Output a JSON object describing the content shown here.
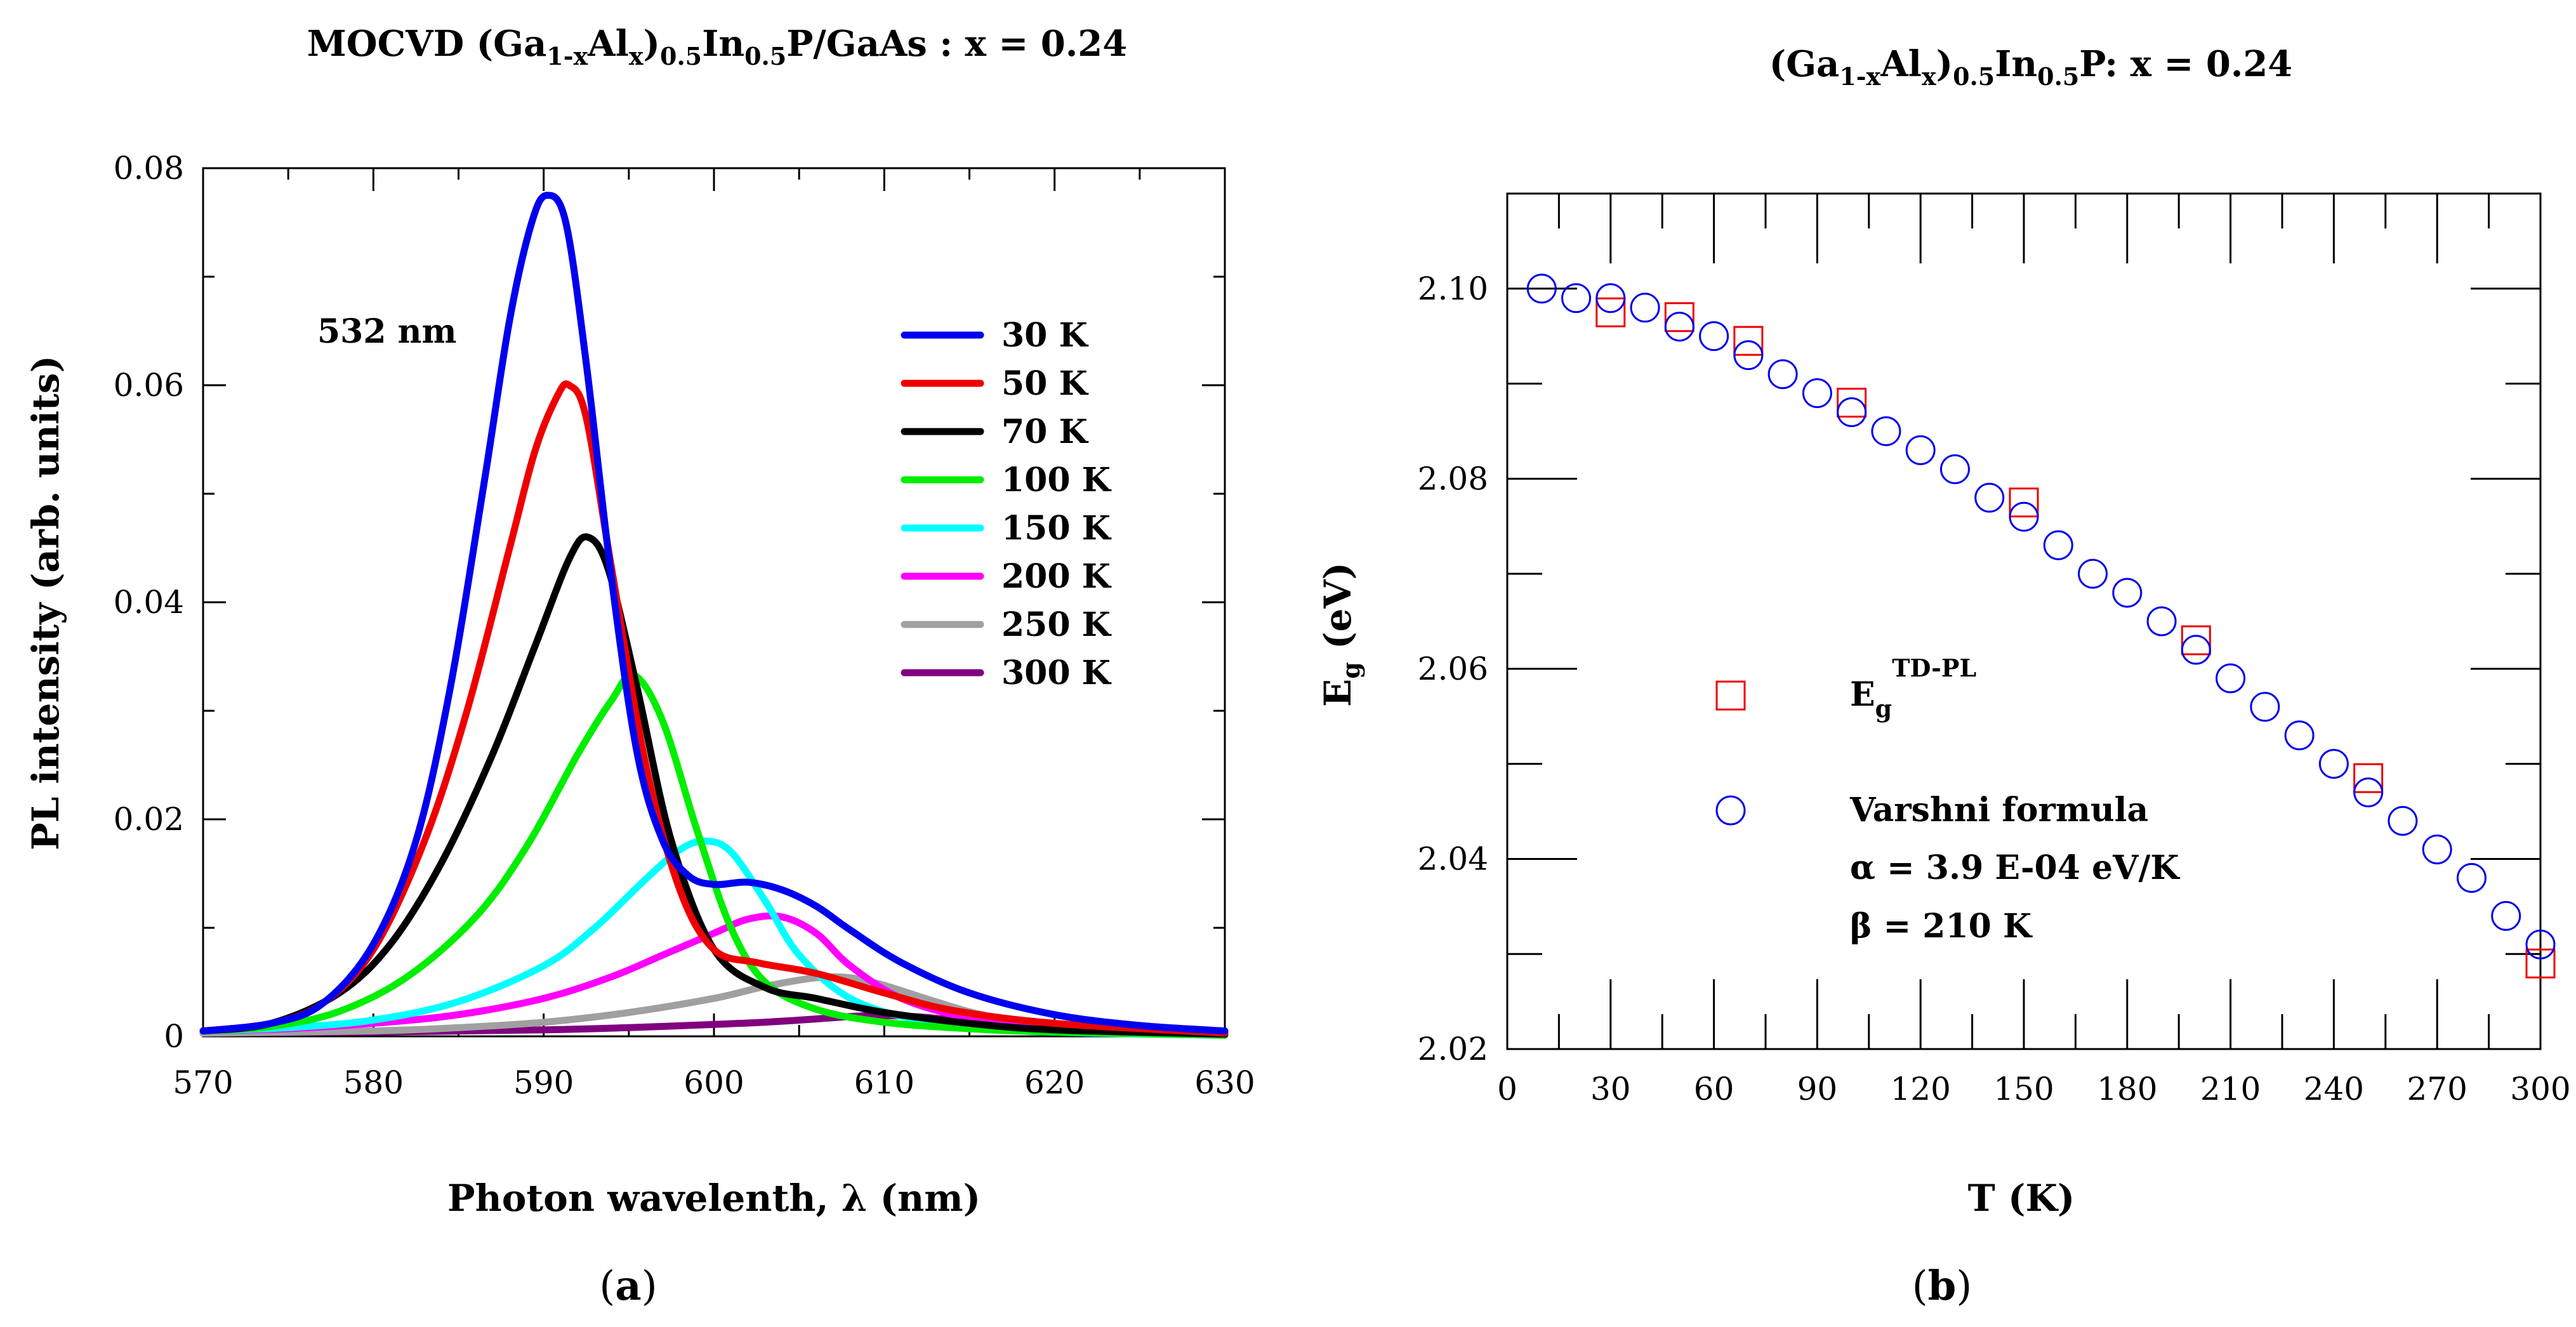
{
  "chart_data": [
    {
      "type": "line",
      "panel_label": "a",
      "title": {
        "pre": "MOCVD (Ga",
        "s1": "1-x",
        "mid1": "Al",
        "s2": "x",
        "mid2": ")",
        "s3": "0.5",
        "mid3": "In",
        "s4": "0.5",
        "post": "P/GaAs : x = 0.24"
      },
      "xlabel": "Photon wavelenth, λ (nm)",
      "ylabel": "PL intensity (arb. units)",
      "xlim": [
        570,
        630
      ],
      "ylim": [
        0,
        0.08
      ],
      "xticks": [
        570,
        580,
        590,
        600,
        610,
        620,
        630
      ],
      "yticks": [
        0,
        0.02,
        0.04,
        0.06,
        0.08
      ],
      "ytick_labels": [
        "0",
        "0.02",
        "0.04",
        "0.06",
        "0.08"
      ],
      "annotation": "532 nm",
      "series": [
        {
          "name": "300 K",
          "color": "#800080",
          "x": [
            570,
            580,
            590,
            595,
            600,
            603,
            606,
            609,
            612,
            616,
            620,
            626,
            630
          ],
          "y": [
            0.0003,
            0.0004,
            0.0006,
            0.0008,
            0.0011,
            0.0013,
            0.0016,
            0.0019,
            0.0018,
            0.0012,
            0.0007,
            0.0004,
            0.0002
          ]
        },
        {
          "name": "250 K",
          "color": "#a0a0a0",
          "x": [
            570,
            580,
            585,
            590,
            595,
            600,
            603,
            606,
            608,
            610,
            613,
            616,
            620,
            625,
            630
          ],
          "y": [
            0.0003,
            0.0005,
            0.0008,
            0.0013,
            0.0022,
            0.0035,
            0.0046,
            0.0054,
            0.0054,
            0.0047,
            0.0032,
            0.0019,
            0.001,
            0.0005,
            0.0003
          ]
        },
        {
          "name": "200 K",
          "color": "#ff00ff",
          "x": [
            570,
            575,
            580,
            585,
            590,
            594,
            597,
            600,
            602,
            604,
            606,
            608,
            611,
            615,
            620,
            625,
            630
          ],
          "y": [
            0.0005,
            0.0007,
            0.0012,
            0.002,
            0.0035,
            0.0055,
            0.0075,
            0.0095,
            0.0108,
            0.011,
            0.0095,
            0.0065,
            0.0035,
            0.0017,
            0.0008,
            0.0004,
            0.0002
          ]
        },
        {
          "name": "150 K",
          "color": "#00ffff",
          "x": [
            570,
            575,
            580,
            585,
            590,
            593,
            596,
            598,
            599.5,
            601,
            603,
            605,
            608,
            612,
            617,
            622,
            630
          ],
          "y": [
            0.0005,
            0.0008,
            0.0015,
            0.0032,
            0.0065,
            0.01,
            0.0145,
            0.0172,
            0.018,
            0.017,
            0.0125,
            0.0075,
            0.0035,
            0.0015,
            0.0006,
            0.0003,
            0.0001
          ]
        },
        {
          "name": "100 K",
          "color": "#00ee00",
          "x": [
            570,
            574,
            578,
            582,
            586,
            589,
            592,
            594,
            595.3,
            597,
            599,
            601,
            603,
            606,
            610,
            615,
            620,
            630
          ],
          "y": [
            0.0005,
            0.0009,
            0.0023,
            0.0055,
            0.011,
            0.0175,
            0.026,
            0.031,
            0.0333,
            0.029,
            0.019,
            0.01,
            0.005,
            0.0025,
            0.0013,
            0.0007,
            0.0004,
            0.0001
          ]
        },
        {
          "name": "70 K",
          "color": "#000000",
          "x": [
            570,
            574,
            578,
            581,
            584,
            587,
            589.5,
            591.5,
            592.6,
            593.8,
            595.5,
            597.5,
            600,
            603,
            606,
            610,
            615,
            620,
            630
          ],
          "y": [
            0.0005,
            0.0012,
            0.004,
            0.0085,
            0.016,
            0.026,
            0.036,
            0.044,
            0.046,
            0.043,
            0.032,
            0.018,
            0.008,
            0.0045,
            0.0035,
            0.0022,
            0.0012,
            0.0006,
            0.0002
          ]
        },
        {
          "name": "50 K",
          "color": "#ee0000",
          "x": [
            570,
            574,
            577,
            580,
            583,
            585.5,
            588,
            589.5,
            590.8,
            591.5,
            592.5,
            594,
            596,
            598,
            600,
            602.5,
            606,
            610,
            614,
            620,
            630
          ],
          "y": [
            0.0005,
            0.0012,
            0.003,
            0.008,
            0.018,
            0.03,
            0.045,
            0.054,
            0.059,
            0.06,
            0.057,
            0.043,
            0.025,
            0.0135,
            0.008,
            0.0068,
            0.0058,
            0.004,
            0.0024,
            0.0012,
            0.0003
          ]
        },
        {
          "name": "30 K",
          "color": "#0000ee",
          "x": [
            570,
            574,
            577,
            580,
            582.5,
            584.5,
            586.5,
            588,
            589.3,
            590.2,
            591.3,
            592.5,
            594,
            595.5,
            597,
            598.5,
            600,
            602,
            604,
            606,
            608,
            611,
            615,
            620,
            625,
            630
          ],
          "y": [
            0.0005,
            0.0012,
            0.003,
            0.0085,
            0.018,
            0.032,
            0.051,
            0.066,
            0.075,
            0.0775,
            0.075,
            0.062,
            0.042,
            0.026,
            0.018,
            0.0148,
            0.014,
            0.0142,
            0.0135,
            0.012,
            0.0098,
            0.0068,
            0.004,
            0.002,
            0.001,
            0.0005
          ]
        }
      ]
    },
    {
      "type": "scatter",
      "panel_label": "b",
      "title": {
        "pre": "(Ga",
        "s1": "1-x",
        "mid1": "Al",
        "s2": "x",
        "mid2": ")",
        "s3": "0.5",
        "mid3": "In",
        "s4": "0.5",
        "post": "P: x = 0.24"
      },
      "xlabel": "T (K)",
      "ylabel": {
        "main": "E",
        "sub": "g",
        "unit": " (eV)"
      },
      "xlim": [
        0,
        300
      ],
      "ylim": [
        2.02,
        2.11
      ],
      "xticks": [
        0,
        30,
        60,
        90,
        120,
        150,
        180,
        210,
        240,
        270,
        300
      ],
      "yticks": [
        2.02,
        2.04,
        2.06,
        2.08,
        2.1
      ],
      "ytick_labels": [
        "2.02",
        "2.04",
        "2.06",
        "2.08",
        "2.10"
      ],
      "legend_items": [
        {
          "main": "E",
          "sub": "g",
          "sup": "TD-PL",
          "marker": "square",
          "color": "#ee0000"
        },
        {
          "main": "Varshni formula",
          "marker": "circle",
          "color": "#0000ee"
        }
      ],
      "notes": [
        "α = 3.9 E-04 eV/K",
        "β = 210 K"
      ],
      "series": [
        {
          "name": "TD-PL",
          "marker": "square",
          "color": "#ee0000",
          "x": [
            30,
            50,
            70,
            100,
            150,
            200,
            250,
            300
          ],
          "y": [
            2.0975,
            2.097,
            2.0945,
            2.088,
            2.0775,
            2.063,
            2.0485,
            2.029
          ]
        },
        {
          "name": "Varshni formula",
          "marker": "circle",
          "color": "#0000ee",
          "x": [
            10,
            20,
            30,
            40,
            50,
            60,
            70,
            80,
            90,
            100,
            110,
            120,
            130,
            140,
            150,
            160,
            170,
            180,
            190,
            200,
            210,
            220,
            230,
            240,
            250,
            260,
            270,
            280,
            290,
            300
          ],
          "y": [
            2.1,
            2.099,
            2.099,
            2.098,
            2.096,
            2.095,
            2.093,
            2.091,
            2.089,
            2.087,
            2.085,
            2.083,
            2.081,
            2.078,
            2.076,
            2.073,
            2.07,
            2.068,
            2.065,
            2.062,
            2.059,
            2.056,
            2.053,
            2.05,
            2.047,
            2.044,
            2.041,
            2.038,
            2.034,
            2.031
          ]
        }
      ]
    }
  ]
}
